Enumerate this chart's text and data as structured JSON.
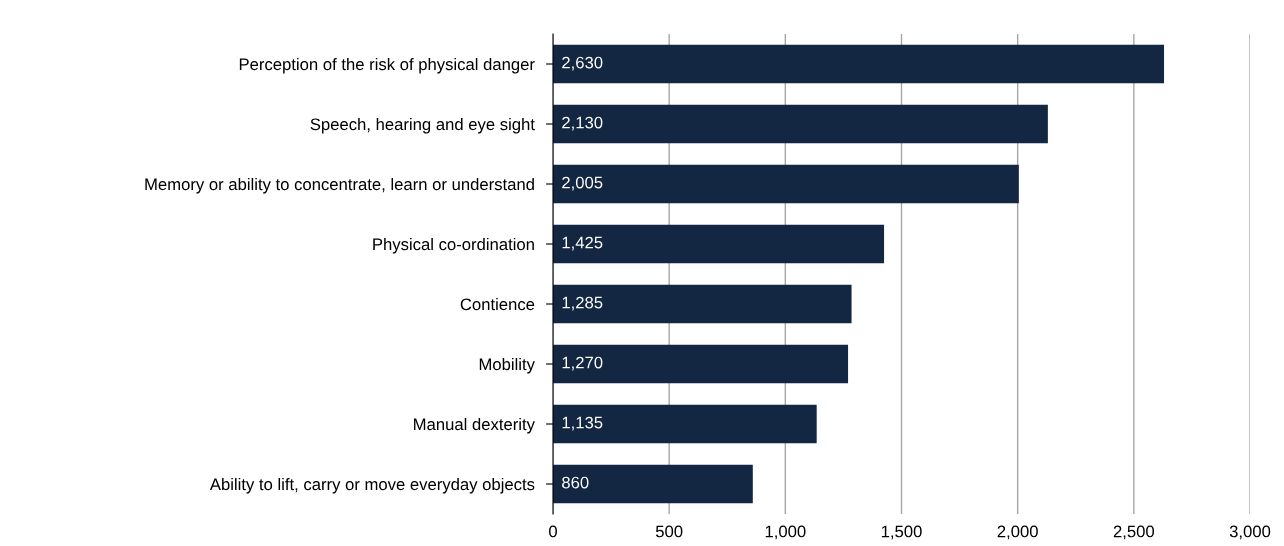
{
  "chart_data": {
    "type": "bar",
    "orientation": "horizontal",
    "categories": [
      "Perception of the risk of physical danger",
      "Speech, hearing and eye sight",
      "Memory or ability to concentrate, learn or understand",
      "Physical co-ordination",
      "Contience",
      "Mobility",
      "Manual dexterity",
      "Ability to lift, carry or move everyday objects"
    ],
    "values": [
      2630,
      2130,
      2005,
      1425,
      1285,
      1270,
      1135,
      860
    ],
    "value_labels": [
      "2,630",
      "2,130",
      "2,005",
      "1,425",
      "1,285",
      "1,270",
      "1,135",
      "860"
    ],
    "color": "#132743",
    "xlim": [
      0,
      3000
    ],
    "xticks": [
      0,
      500,
      {
        "value": 1000,
        "label": "1,000"
      },
      {
        "value": 1500,
        "label": "1,500"
      },
      {
        "value": 2000,
        "label": "2,000"
      },
      {
        "value": 2500,
        "label": "2,500"
      },
      {
        "value": 3000,
        "label": "3,000"
      }
    ],
    "grid": "x",
    "legend": false
  }
}
